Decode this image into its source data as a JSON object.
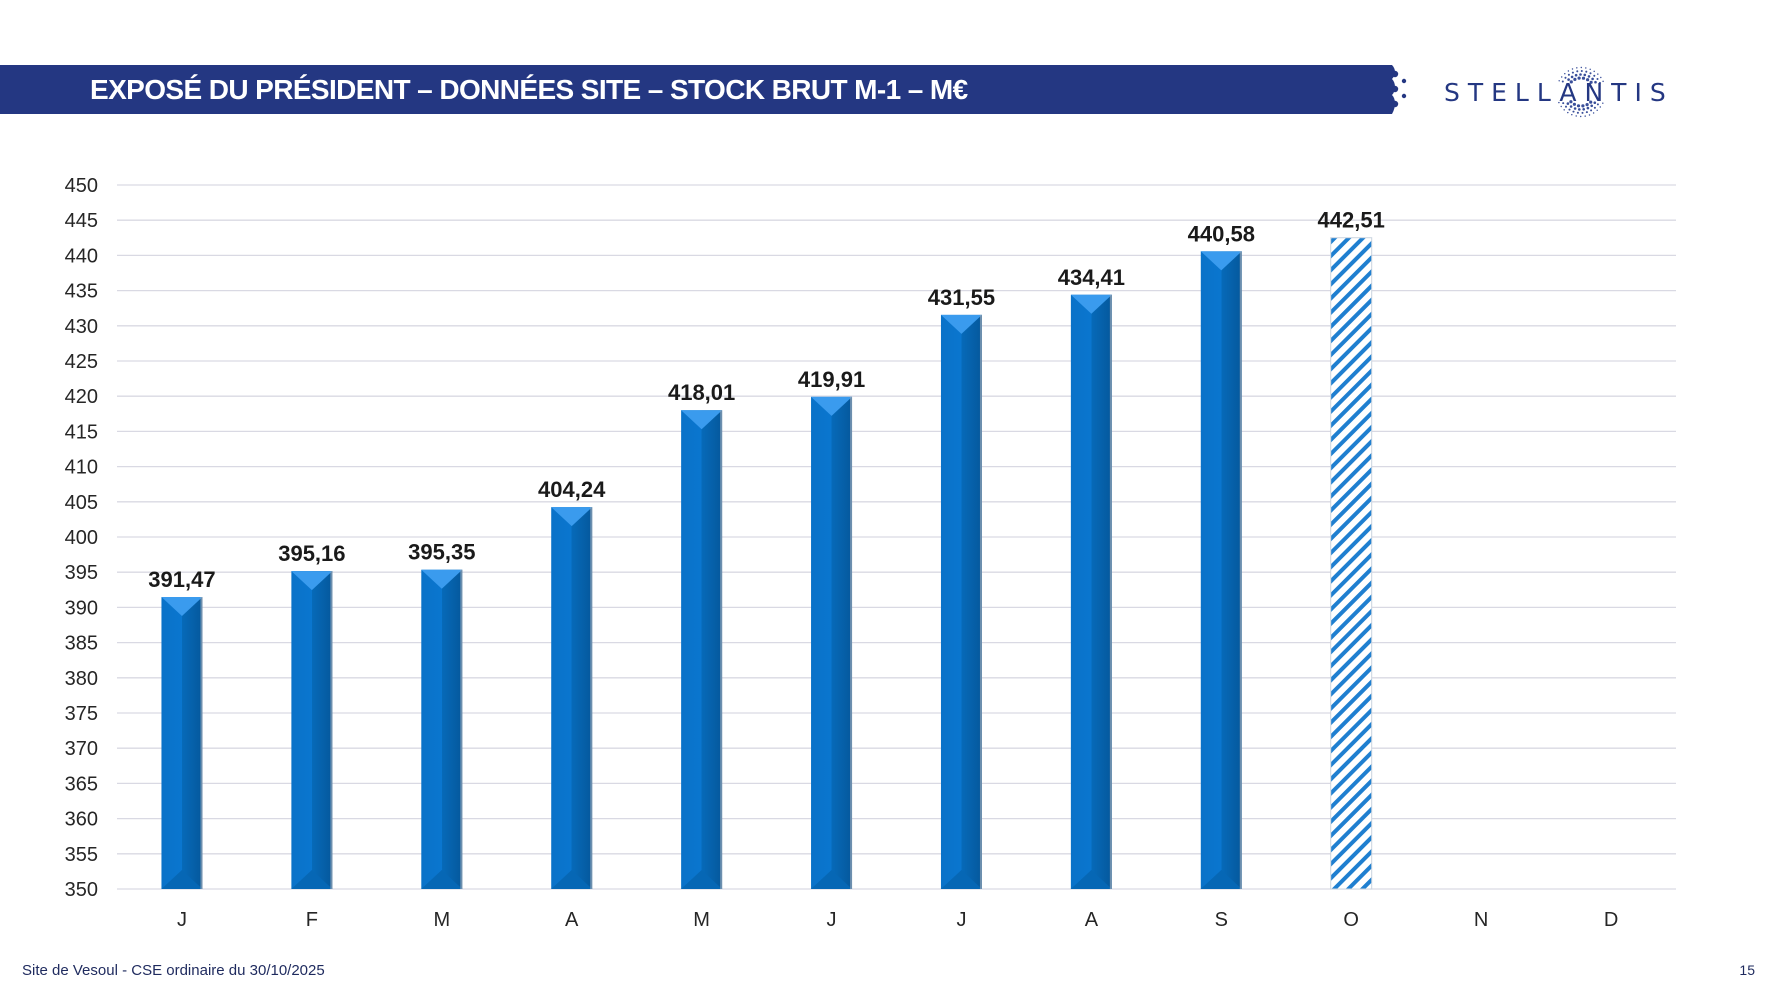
{
  "header": {
    "title": "EXPOSÉ DU PRÉSIDENT – DONNÉES SITE – STOCK BRUT M-1 – M€",
    "band_color": "#243782",
    "logo_text": "STELLANTIS",
    "logo_icon": "stellantis-logo-icon"
  },
  "footer": {
    "text": "Site de Vesoul - CSE ordinaire du 30/10/2025",
    "page_number": "15"
  },
  "colors": {
    "bar": "#0a73c9",
    "bar_dark": "#075ba3",
    "bar_light": "#3a9bee",
    "hatch": "#1f7fd0",
    "grid": "#d9d9e3"
  },
  "chart_data": {
    "type": "bar",
    "title": "STOCK BRUT M-1 – M€",
    "xlabel": "",
    "ylabel": "",
    "categories": [
      "J",
      "F",
      "M",
      "A",
      "M",
      "J",
      "J",
      "A",
      "S",
      "O",
      "N",
      "D"
    ],
    "values": [
      391.47,
      395.16,
      395.35,
      404.24,
      418.01,
      419.91,
      431.55,
      434.41,
      440.58,
      442.51,
      null,
      null
    ],
    "data_labels": [
      "391,47",
      "395,16",
      "395,35",
      "404,24",
      "418,01",
      "419,91",
      "431,55",
      "434,41",
      "440,58",
      "442,51",
      "",
      ""
    ],
    "styles": [
      "solid",
      "solid",
      "solid",
      "solid",
      "solid",
      "solid",
      "solid",
      "solid",
      "solid",
      "hatched",
      "",
      ""
    ],
    "ylim": [
      350,
      450
    ],
    "yticks": [
      350,
      355,
      360,
      365,
      370,
      375,
      380,
      385,
      390,
      395,
      400,
      405,
      410,
      415,
      420,
      425,
      430,
      435,
      440,
      445,
      450
    ],
    "grid": true,
    "legend": "none"
  }
}
